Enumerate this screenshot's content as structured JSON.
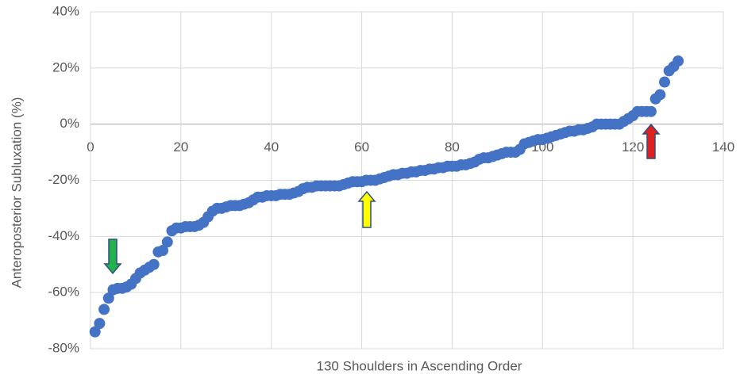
{
  "chart_data": {
    "type": "scatter",
    "x_label": "130 Shoulders in Ascending Order",
    "y_label": "Anteroposterior Subluxation (%)",
    "color": "#4472c4",
    "grid": true,
    "xlim": [
      0,
      140
    ],
    "xticks": [
      0,
      20,
      40,
      60,
      80,
      100,
      120,
      140
    ],
    "ylim": [
      -80,
      40
    ],
    "yticks": [
      {
        "value": -80,
        "label": "-80%"
      },
      {
        "value": -60,
        "label": "-60%"
      },
      {
        "value": -40,
        "label": "-40%"
      },
      {
        "value": -20,
        "label": "-20%"
      },
      {
        "value": 0,
        "label": "0%"
      },
      {
        "value": 20,
        "label": "20%"
      },
      {
        "value": 40,
        "label": "40%"
      }
    ],
    "x": [
      1,
      2,
      3,
      4,
      5,
      6,
      7,
      8,
      9,
      10,
      11,
      12,
      13,
      14,
      15,
      16,
      17,
      18,
      19,
      20,
      21,
      22,
      23,
      24,
      25,
      26,
      27,
      28,
      29,
      30,
      31,
      32,
      33,
      34,
      35,
      36,
      37,
      38,
      39,
      40,
      41,
      42,
      43,
      44,
      45,
      46,
      47,
      48,
      49,
      50,
      51,
      52,
      53,
      54,
      55,
      56,
      57,
      58,
      59,
      60,
      61,
      62,
      63,
      64,
      65,
      66,
      67,
      68,
      69,
      70,
      71,
      72,
      73,
      74,
      75,
      76,
      77,
      78,
      79,
      80,
      81,
      82,
      83,
      84,
      85,
      86,
      87,
      88,
      89,
      90,
      91,
      92,
      93,
      94,
      95,
      96,
      97,
      98,
      99,
      100,
      101,
      102,
      103,
      104,
      105,
      106,
      107,
      108,
      109,
      110,
      111,
      112,
      113,
      114,
      115,
      116,
      117,
      118,
      119,
      120,
      121,
      122,
      123,
      124,
      125,
      126,
      127,
      128,
      129,
      130
    ],
    "values": [
      -74,
      -71,
      -66,
      -62,
      -59,
      -58.5,
      -58.5,
      -58,
      -57,
      -55,
      -53,
      -52,
      -51,
      -50,
      -45.5,
      -45,
      -42,
      -38,
      -37,
      -37,
      -36.5,
      -36.5,
      -36.5,
      -36,
      -35,
      -33,
      -31,
      -30,
      -30,
      -29.5,
      -29,
      -29,
      -29,
      -28.5,
      -28,
      -27,
      -26,
      -26,
      -25.5,
      -25.5,
      -25.5,
      -25,
      -25,
      -25,
      -24.5,
      -24,
      -23,
      -22.5,
      -22.5,
      -22,
      -22,
      -22,
      -22,
      -22,
      -22,
      -21.5,
      -21,
      -20.5,
      -20.5,
      -20.5,
      -20,
      -20,
      -20,
      -19.5,
      -19,
      -18.5,
      -18,
      -18,
      -17.5,
      -17.5,
      -17,
      -17,
      -16.5,
      -16.5,
      -16,
      -16,
      -15.5,
      -15.5,
      -15,
      -15,
      -15,
      -14.5,
      -14.5,
      -14,
      -13.5,
      -12.5,
      -12,
      -12,
      -11.5,
      -11,
      -10.5,
      -10,
      -10,
      -10,
      -9,
      -7,
      -6.5,
      -6,
      -5.5,
      -5.5,
      -5,
      -4.5,
      -4,
      -3.5,
      -3,
      -2.5,
      -2.5,
      -2,
      -2,
      -1.5,
      -1,
      0,
      0,
      0,
      0,
      0,
      0,
      1,
      2,
      3,
      4.5,
      4.5,
      4.5,
      4.5,
      9,
      10.5,
      15,
      19,
      20.5,
      22.5
    ]
  }
}
